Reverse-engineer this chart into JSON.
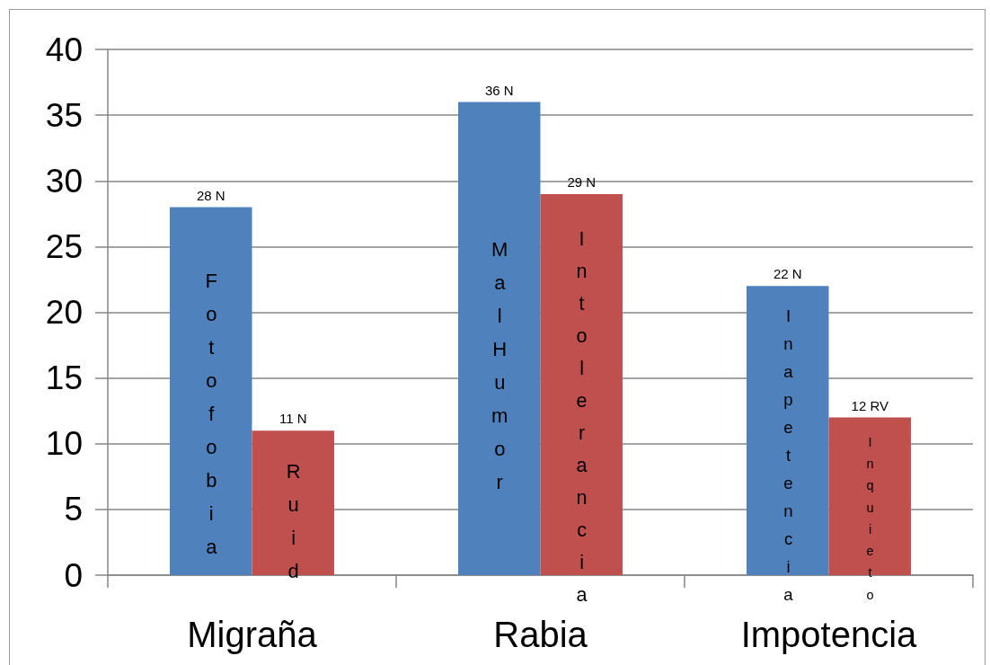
{
  "chart_data": {
    "type": "bar",
    "categories": [
      "Migraña",
      "Rabia",
      "Impotencia"
    ],
    "series": [
      {
        "color": "#4f81bd",
        "values": [
          28,
          36,
          22
        ],
        "value_labels": [
          "28 N",
          "36 N",
          "22 N"
        ]
      },
      {
        "color": "#c0504d",
        "values": [
          11,
          29,
          12
        ],
        "value_labels": [
          "11 N",
          "29 N",
          "12 RV"
        ]
      }
    ],
    "ylim": [
      0,
      40
    ],
    "yticks": [
      0,
      5,
      10,
      15,
      20,
      25,
      30,
      35,
      40
    ],
    "grid": "y",
    "annotations": [
      {
        "text": "Fotofobia",
        "x": "Migraña",
        "y": 22.4
      },
      {
        "text": "Ruid",
        "x": "Migraña",
        "y": 7.9
      },
      {
        "text": "MalHumor",
        "x": "Rabia",
        "y": 24.8
      },
      {
        "text": "Intolerancia",
        "x": "Rabia",
        "y": 25.6
      },
      {
        "text": "Inapetencia",
        "x": "Impotencia",
        "y": 19.7
      },
      {
        "text": "Inquieto",
        "x": "Impotencia",
        "y": 10.1
      }
    ]
  }
}
